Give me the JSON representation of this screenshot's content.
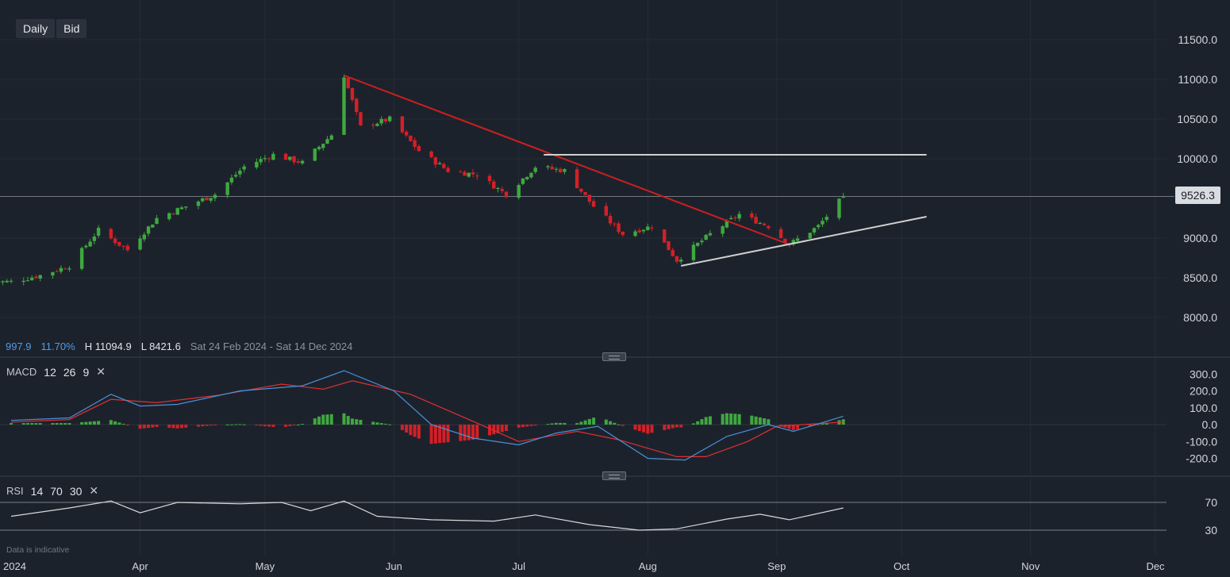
{
  "toolbar": {
    "timeframe": "Daily",
    "price_type": "Bid"
  },
  "info": {
    "change": "997.9",
    "change_pct": "11.70%",
    "high": "H 11094.9",
    "low": "L 8421.6",
    "range": "Sat 24 Feb 2024 - Sat 14 Dec 2024"
  },
  "last_price_label": "9526.3",
  "disclaimer": "Data is indicative",
  "colors": {
    "background": "#1c222c",
    "up_candle": "#3fa83f",
    "down_candle": "#d32027",
    "macd_line": "#4a90d9",
    "signal_line": "#e03030",
    "rsi_line": "#d8d8d8",
    "trendline_red": "#cc1f1f",
    "trendline_white": "#d0d0d0"
  },
  "chart_data": [
    {
      "type": "candlestick",
      "name": "price",
      "y_ticks": [
        "11500.0",
        "11000.0",
        "10500.0",
        "10000.0",
        "9000.0",
        "8500.0",
        "8000.0"
      ],
      "ylim": [
        7650,
        11900
      ],
      "x_tick_labels": [
        "2024",
        "Apr",
        "May",
        "Jun",
        "Jul",
        "Aug",
        "Sep",
        "Oct",
        "Nov",
        "Dec"
      ],
      "last_price": 9526.3,
      "high": 11094.9,
      "low": 8421.6,
      "close_path": [
        [
          "2024-03-01",
          8450
        ],
        [
          "2024-03-08",
          8530
        ],
        [
          "2024-03-15",
          8650
        ],
        [
          "2024-03-22",
          9100
        ],
        [
          "2024-03-29",
          8850
        ],
        [
          "2024-04-05",
          9250
        ],
        [
          "2024-04-12",
          9400
        ],
        [
          "2024-04-19",
          9550
        ],
        [
          "2024-04-26",
          9900
        ],
        [
          "2024-05-03",
          10050
        ],
        [
          "2024-05-10",
          9950
        ],
        [
          "2024-05-17",
          10300
        ],
        [
          "2024-05-20",
          11050
        ],
        [
          "2024-05-24",
          10400
        ],
        [
          "2024-05-31",
          10500
        ],
        [
          "2024-06-07",
          10100
        ],
        [
          "2024-06-14",
          9850
        ],
        [
          "2024-06-21",
          9800
        ],
        [
          "2024-06-28",
          9550
        ],
        [
          "2024-07-05",
          9900
        ],
        [
          "2024-07-12",
          9850
        ],
        [
          "2024-07-19",
          9400
        ],
        [
          "2024-07-26",
          9050
        ],
        [
          "2024-08-02",
          9150
        ],
        [
          "2024-08-08",
          8720
        ],
        [
          "2024-08-16",
          9050
        ],
        [
          "2024-08-23",
          9300
        ],
        [
          "2024-08-30",
          9150
        ],
        [
          "2024-09-04",
          8920
        ],
        [
          "2024-09-11",
          9150
        ],
        [
          "2024-09-17",
          9526.3
        ]
      ],
      "lines": [
        {
          "name": "red downtrend",
          "from": [
            "2024-05-20",
            11050
          ],
          "to": [
            "2024-09-04",
            8920
          ]
        },
        {
          "name": "resistance",
          "from": [
            "2024-07-07",
            10050
          ],
          "to": [
            "2024-10-07",
            10050
          ]
        },
        {
          "name": "rising support",
          "from": [
            "2024-08-09",
            8650
          ],
          "to": [
            "2024-10-07",
            9270
          ]
        }
      ]
    },
    {
      "type": "line",
      "name": "MACD",
      "params": [
        "12",
        "26",
        "9"
      ],
      "y_ticks": [
        "300.0",
        "200.0",
        "100.0",
        "0.0",
        "-100.0",
        "-200.0"
      ],
      "series": [
        {
          "name": "macd",
          "points": [
            [
              "2024-03-01",
              25
            ],
            [
              "2024-03-15",
              40
            ],
            [
              "2024-03-25",
              180
            ],
            [
              "2024-04-01",
              110
            ],
            [
              "2024-04-10",
              120
            ],
            [
              "2024-04-25",
              200
            ],
            [
              "2024-05-10",
              230
            ],
            [
              "2024-05-20",
              320
            ],
            [
              "2024-06-01",
              200
            ],
            [
              "2024-06-10",
              0
            ],
            [
              "2024-06-20",
              -80
            ],
            [
              "2024-07-01",
              -120
            ],
            [
              "2024-07-10",
              -50
            ],
            [
              "2024-07-20",
              -10
            ],
            [
              "2024-08-01",
              -200
            ],
            [
              "2024-08-10",
              -210
            ],
            [
              "2024-08-20",
              -70
            ],
            [
              "2024-08-30",
              0
            ],
            [
              "2024-09-05",
              -40
            ],
            [
              "2024-09-17",
              50
            ]
          ]
        },
        {
          "name": "signal",
          "points": [
            [
              "2024-03-01",
              15
            ],
            [
              "2024-03-15",
              30
            ],
            [
              "2024-03-25",
              150
            ],
            [
              "2024-04-05",
              130
            ],
            [
              "2024-04-20",
              175
            ],
            [
              "2024-05-05",
              240
            ],
            [
              "2024-05-15",
              210
            ],
            [
              "2024-05-22",
              260
            ],
            [
              "2024-06-05",
              180
            ],
            [
              "2024-06-20",
              20
            ],
            [
              "2024-07-01",
              -100
            ],
            [
              "2024-07-15",
              -40
            ],
            [
              "2024-07-25",
              -90
            ],
            [
              "2024-08-08",
              -190
            ],
            [
              "2024-08-15",
              -190
            ],
            [
              "2024-08-25",
              -100
            ],
            [
              "2024-09-01",
              -10
            ],
            [
              "2024-09-17",
              15
            ]
          ]
        }
      ]
    },
    {
      "type": "line",
      "name": "RSI",
      "params": [
        "14",
        "70",
        "30"
      ],
      "y_ticks": [
        "70",
        "30"
      ],
      "ylim": [
        10,
        90
      ],
      "series": [
        {
          "name": "rsi",
          "points": [
            [
              "2024-03-01",
              50
            ],
            [
              "2024-03-15",
              62
            ],
            [
              "2024-03-25",
              72
            ],
            [
              "2024-04-01",
              55
            ],
            [
              "2024-04-10",
              70
            ],
            [
              "2024-04-25",
              68
            ],
            [
              "2024-05-05",
              70
            ],
            [
              "2024-05-12",
              58
            ],
            [
              "2024-05-20",
              72
            ],
            [
              "2024-05-28",
              50
            ],
            [
              "2024-06-10",
              45
            ],
            [
              "2024-06-25",
              43
            ],
            [
              "2024-07-05",
              52
            ],
            [
              "2024-07-18",
              38
            ],
            [
              "2024-07-30",
              30
            ],
            [
              "2024-08-08",
              32
            ],
            [
              "2024-08-20",
              46
            ],
            [
              "2024-08-28",
              53
            ],
            [
              "2024-09-04",
              45
            ],
            [
              "2024-09-17",
              62
            ]
          ]
        }
      ]
    }
  ]
}
